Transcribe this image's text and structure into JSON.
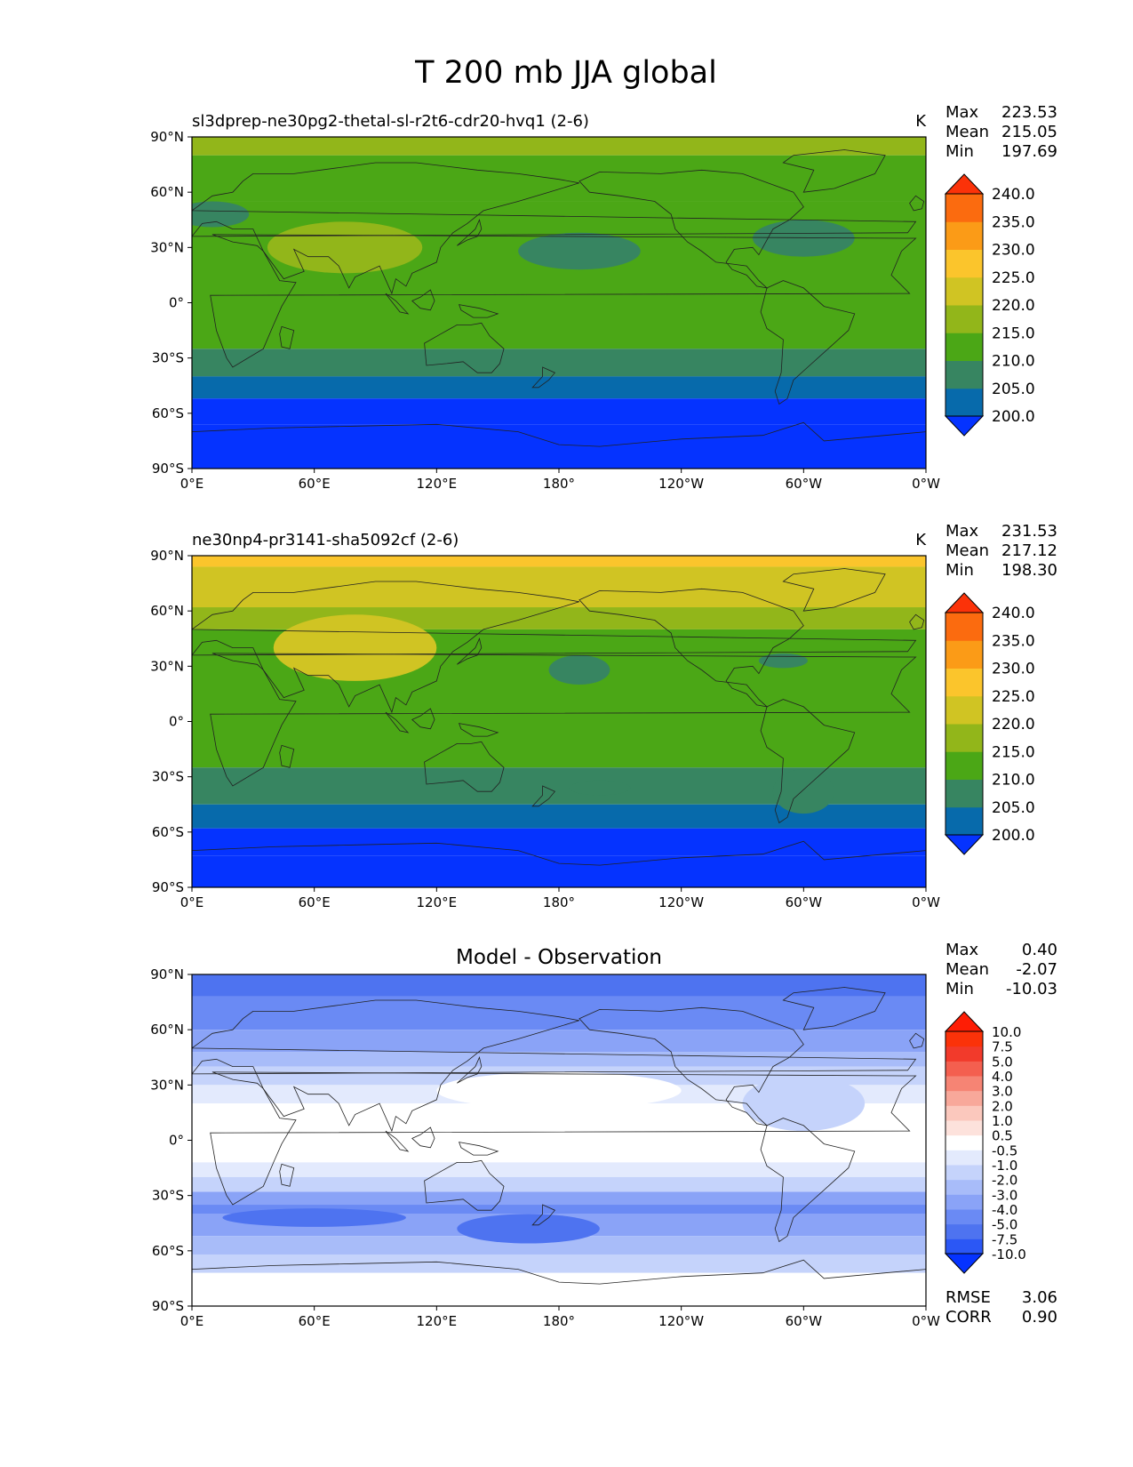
{
  "figure": {
    "title": "T 200 mb JJA global"
  },
  "panels": [
    {
      "id": "test",
      "title_left": "sl3dprep-ne30pg2-thetal-sl-r2t6-cdr20-hvq1 (2-6)",
      "title_center": "",
      "units": "K",
      "stats": [
        {
          "label": "Max",
          "value": "223.53"
        },
        {
          "label": "Mean",
          "value": "215.05"
        },
        {
          "label": "Min",
          "value": "197.69"
        }
      ],
      "colorbar": {
        "levels": [
          "200.0",
          "205.0",
          "210.0",
          "215.0",
          "220.0",
          "225.0",
          "230.0",
          "235.0",
          "240.0"
        ],
        "colors": [
          "#0533ff",
          "#076aab",
          "#378561",
          "#4ba716",
          "#92b61a",
          "#d0c423",
          "#fbc52c",
          "#fb9b17",
          "#fb6b0f",
          "#fb3209"
        ]
      },
      "bands": [
        {
          "lat": 80,
          "level": 4
        },
        {
          "lat": 55,
          "level": 3
        },
        {
          "lat": -25,
          "level": 3
        },
        {
          "lat": -40,
          "level": 2
        },
        {
          "lat": -52,
          "level": 1
        },
        {
          "lat": -66,
          "level": 0
        },
        {
          "lat": -90,
          "level": 0
        }
      ],
      "blobs": [
        {
          "lon": 75,
          "lat": 30,
          "rlon": 38,
          "rlat": 14,
          "level": 4
        },
        {
          "lon": 190,
          "lat": 28,
          "rlon": 30,
          "rlat": 10,
          "level": 2
        },
        {
          "lon": 300,
          "lat": 35,
          "rlon": 25,
          "rlat": 10,
          "level": 2
        },
        {
          "lon": 10,
          "lat": 48,
          "rlon": 18,
          "rlat": 7,
          "level": 2
        }
      ]
    },
    {
      "id": "reference",
      "title_left": "ne30np4-pr3141-sha5092cf (2-6)",
      "title_center": "",
      "units": "K",
      "stats": [
        {
          "label": "Max",
          "value": "231.53"
        },
        {
          "label": "Mean",
          "value": "217.12"
        },
        {
          "label": "Min",
          "value": "198.30"
        }
      ],
      "colorbar": {
        "levels": [
          "200.0",
          "205.0",
          "210.0",
          "215.0",
          "220.0",
          "225.0",
          "230.0",
          "235.0",
          "240.0"
        ],
        "colors": [
          "#0533ff",
          "#076aab",
          "#378561",
          "#4ba716",
          "#92b61a",
          "#d0c423",
          "#fbc52c",
          "#fb9b17",
          "#fb6b0f",
          "#fb3209"
        ]
      },
      "bands": [
        {
          "lat": 84,
          "level": 6
        },
        {
          "lat": 62,
          "level": 5
        },
        {
          "lat": 50,
          "level": 4
        },
        {
          "lat": -25,
          "level": 3
        },
        {
          "lat": -45,
          "level": 2
        },
        {
          "lat": -58,
          "level": 1
        },
        {
          "lat": -73,
          "level": 0
        },
        {
          "lat": -90,
          "level": 0
        }
      ],
      "blobs": [
        {
          "lon": 80,
          "lat": 40,
          "rlon": 40,
          "rlat": 18,
          "level": 5
        },
        {
          "lon": 190,
          "lat": 28,
          "rlon": 15,
          "rlat": 8,
          "level": 2
        },
        {
          "lon": 290,
          "lat": 33,
          "rlon": 12,
          "rlat": 4,
          "level": 2
        },
        {
          "lon": 200,
          "lat": -36,
          "rlon": 15,
          "rlat": 4,
          "level": 2
        },
        {
          "lon": 300,
          "lat": -38,
          "rlon": 15,
          "rlat": 12,
          "level": 2
        }
      ]
    },
    {
      "id": "difference",
      "title_left": "",
      "title_center": "Model - Observation",
      "units": "",
      "stats": [
        {
          "label": "Max",
          "value": "0.40"
        },
        {
          "label": "Mean",
          "value": "-2.07"
        },
        {
          "label": "Min",
          "value": "-10.03"
        }
      ],
      "colorbar": {
        "levels": [
          "-10.0",
          "-7.5",
          "-5.0",
          "-4.0",
          "-3.0",
          "-2.0",
          "-1.0",
          "-0.5",
          "0.5",
          "1.0",
          "2.0",
          "3.0",
          "4.0",
          "5.0",
          "7.5",
          "10.0"
        ],
        "colors": [
          "#0533ff",
          "#2b57f5",
          "#4e73f0",
          "#6a8af4",
          "#8aa3f7",
          "#a8bcf9",
          "#c5d3fb",
          "#e3eafd",
          "#ffffff",
          "#fde2dc",
          "#fbc8bd",
          "#f8a89a",
          "#f68474",
          "#f45f4f",
          "#f23a2b",
          "#fb3209",
          "#fe1d05"
        ]
      },
      "bands": [
        {
          "lat": 78,
          "level": 2
        },
        {
          "lat": 60,
          "level": 3
        },
        {
          "lat": 48,
          "level": 4
        },
        {
          "lat": 40,
          "level": 5
        },
        {
          "lat": 30,
          "level": 6
        },
        {
          "lat": 20,
          "level": 7
        },
        {
          "lat": -12,
          "level": 8
        },
        {
          "lat": -20,
          "level": 7
        },
        {
          "lat": -28,
          "level": 6
        },
        {
          "lat": -35,
          "level": 4
        },
        {
          "lat": -40,
          "level": 3
        },
        {
          "lat": -52,
          "level": 4
        },
        {
          "lat": -62,
          "level": 5
        },
        {
          "lat": -72,
          "level": 6
        },
        {
          "lat": -80,
          "level": 8
        },
        {
          "lat": -90,
          "level": 8
        }
      ],
      "blobs": [
        {
          "lon": 180,
          "lat": 27,
          "rlon": 60,
          "rlat": 10,
          "level": 8
        },
        {
          "lon": 165,
          "lat": -48,
          "rlon": 35,
          "rlat": 8,
          "level": 2
        },
        {
          "lon": 60,
          "lat": -42,
          "rlon": 45,
          "rlat": 5,
          "level": 2
        },
        {
          "lon": 300,
          "lat": 20,
          "rlon": 30,
          "rlat": 15,
          "level": 6
        }
      ],
      "extra": [
        {
          "label": "RMSE",
          "value": "3.06"
        },
        {
          "label": "CORR",
          "value": "0.90"
        }
      ]
    }
  ],
  "axes": {
    "lon_ticks": [
      "0°E",
      "60°E",
      "120°E",
      "180°",
      "120°W",
      "60°W",
      "0°W"
    ],
    "lat_ticks": [
      "90°N",
      "60°N",
      "30°N",
      "0°",
      "30°S",
      "60°S",
      "90°S"
    ]
  }
}
